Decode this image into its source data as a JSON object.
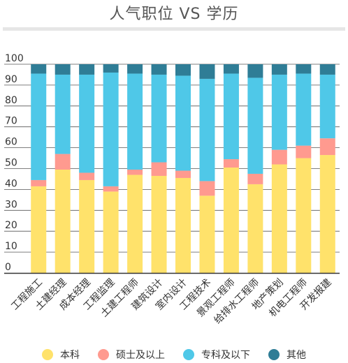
{
  "title": "人气职位 VS 学历",
  "chart_data": {
    "type": "bar",
    "stacked": true,
    "title": "人气职位 VS 学历",
    "categories": [
      "工程施工",
      "土建经理",
      "成本经理",
      "工程监理",
      "土建工程师",
      "建筑设计",
      "室内设计",
      "工程技术",
      "景观工程师",
      "给排水工程师",
      "地产策划",
      "机电工程师",
      "开发报建"
    ],
    "series": [
      {
        "name": "本科",
        "color": "#FFE26B",
        "values": [
          41.5,
          49.5,
          44.5,
          39,
          47,
          46.5,
          45.5,
          37,
          50.5,
          42.5,
          52,
          55,
          56.5
        ]
      },
      {
        "name": "硕士及以上",
        "color": "#FF9A8F",
        "values": [
          3,
          7.5,
          3.5,
          2.5,
          2.5,
          6.5,
          3.5,
          7,
          4,
          5,
          7,
          6,
          8
        ]
      },
      {
        "name": "专科及以下",
        "color": "#4FC8E8",
        "values": [
          51,
          38,
          47,
          54.5,
          46,
          42,
          45.5,
          49,
          41,
          46,
          36,
          34.5,
          30.5
        ]
      },
      {
        "name": "其他",
        "color": "#2F7D96",
        "values": [
          4.5,
          5,
          5,
          4,
          4.5,
          5,
          5.5,
          7,
          4.5,
          6.5,
          5,
          4.5,
          5
        ]
      }
    ],
    "ylim": [
      0,
      100
    ],
    "yticks": [
      0,
      10,
      20,
      30,
      40,
      50,
      60,
      70,
      80,
      90,
      100
    ],
    "grid": true,
    "legend_position": "bottom"
  }
}
